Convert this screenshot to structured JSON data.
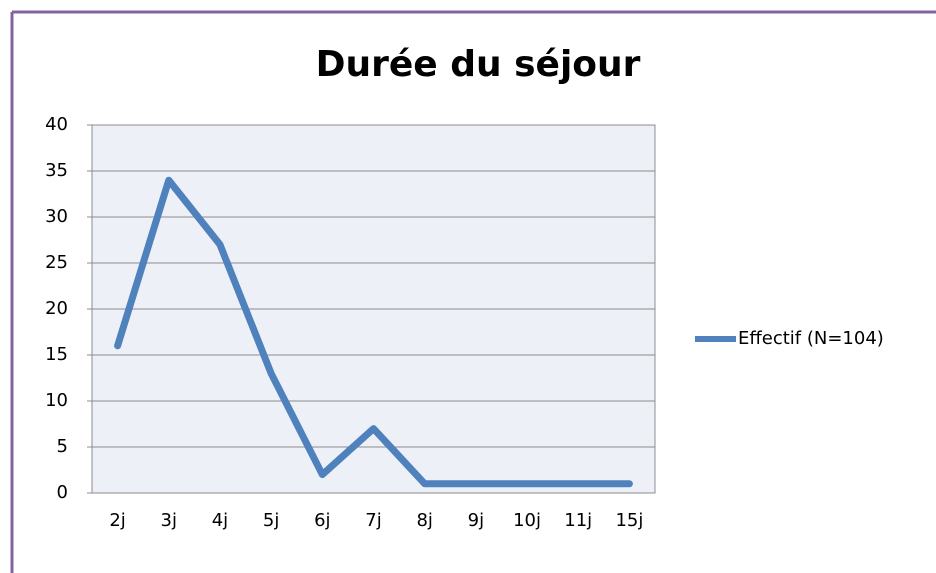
{
  "chart_data": {
    "type": "line",
    "title": "Durée du séjour",
    "categories": [
      "2j",
      "3j",
      "4j",
      "5j",
      "6j",
      "7j",
      "8j",
      "9j",
      "10j",
      "11j",
      "15j"
    ],
    "series": [
      {
        "name": "Effectif (N=104)",
        "color": "#4f81bd",
        "values": [
          16,
          34,
          27,
          13,
          2,
          7,
          1,
          1,
          1,
          1,
          1
        ]
      }
    ],
    "ylim": [
      0,
      40
    ],
    "yticks": [
      0,
      5,
      10,
      15,
      20,
      25,
      30,
      35,
      40
    ],
    "grid": true,
    "legend": "right"
  }
}
